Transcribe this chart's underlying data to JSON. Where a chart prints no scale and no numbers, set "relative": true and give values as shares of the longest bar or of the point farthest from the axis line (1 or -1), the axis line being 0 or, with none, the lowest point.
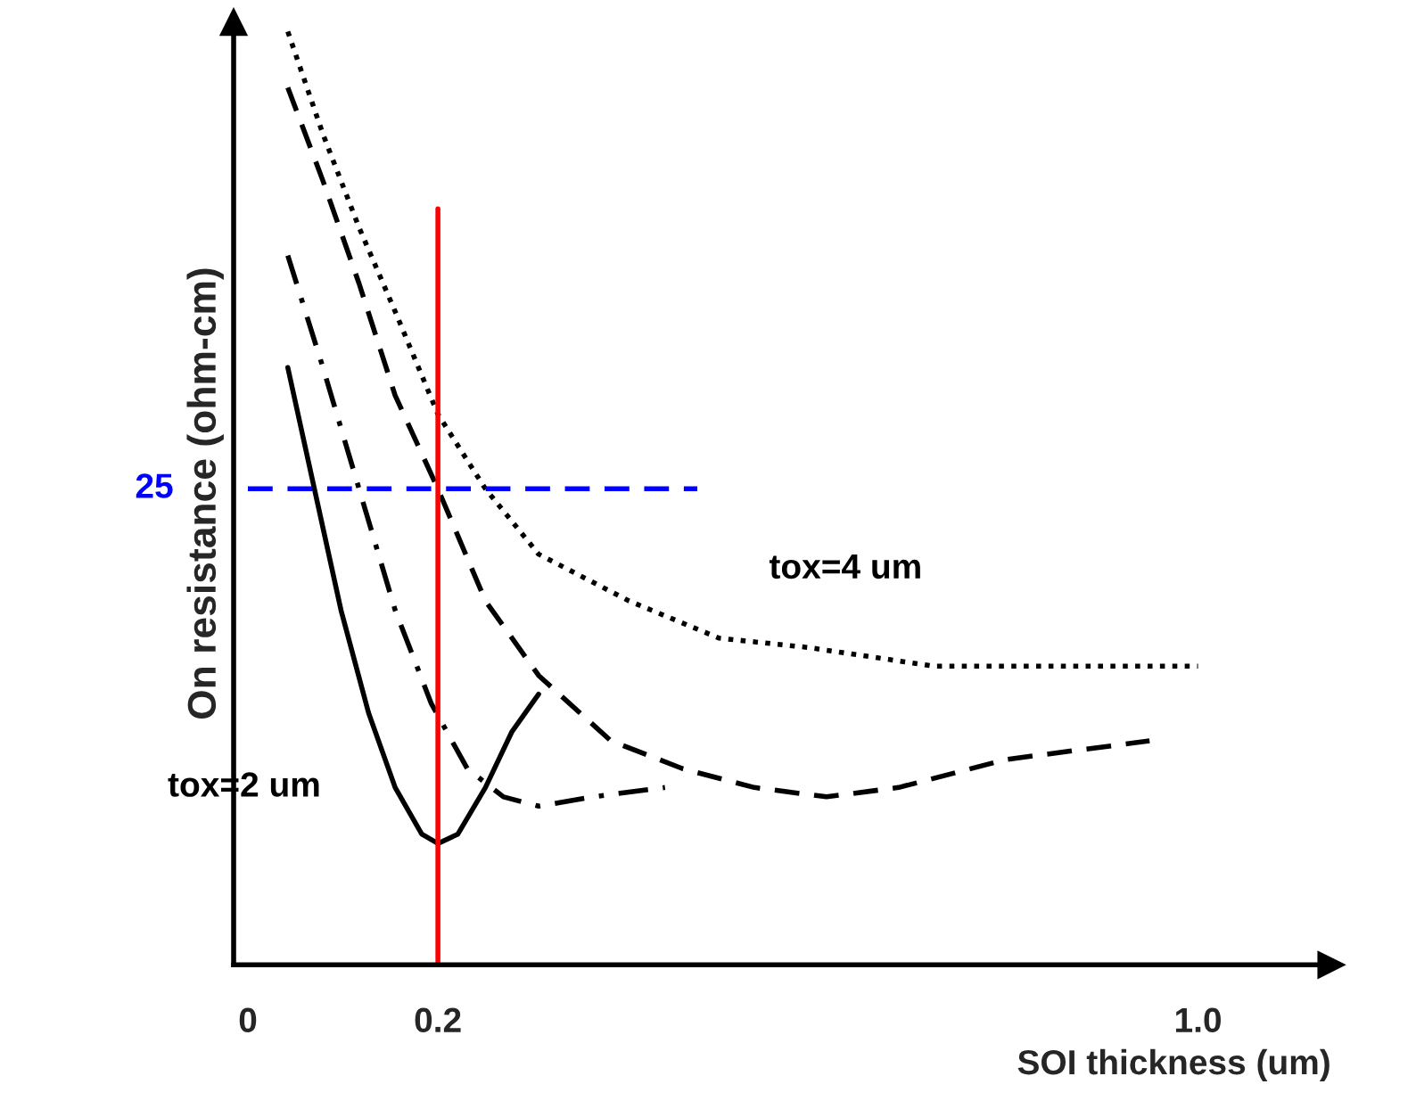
{
  "chart_data": {
    "type": "line",
    "xlabel": "SOI thickness (um)",
    "ylabel": "On resistance (ohm-cm)",
    "relative": true,
    "xlim": [
      -0.015,
      1.14
    ],
    "xticks": [
      {
        "value": 0,
        "label": "0"
      },
      {
        "value": 0.2,
        "label": "0.2"
      },
      {
        "value": 1.0,
        "label": "1.0"
      }
    ],
    "grid": false,
    "legend": false,
    "marker": "none",
    "series": [
      {
        "color": "#000000",
        "line_style": "solid",
        "x": [
          0.042,
          0.07,
          0.098,
          0.127,
          0.155,
          0.183,
          0.2,
          0.221,
          0.25,
          0.278,
          0.306
        ],
        "values": [
          0.64,
          0.51,
          0.38,
          0.27,
          0.19,
          0.14,
          0.13,
          0.14,
          0.19,
          0.25,
          0.29
        ]
      },
      {
        "color": "#000000",
        "line_style": "dashdot",
        "x": [
          0.042,
          0.079,
          0.117,
          0.155,
          0.193,
          0.231,
          0.269,
          0.306,
          0.363,
          0.439
        ],
        "values": [
          0.76,
          0.64,
          0.51,
          0.38,
          0.28,
          0.21,
          0.18,
          0.17,
          0.18,
          0.19
        ]
      },
      {
        "color": "#000000",
        "line_style": "dashed",
        "x": [
          0.042,
          0.079,
          0.117,
          0.155,
          0.2,
          0.25,
          0.306,
          0.382,
          0.458,
          0.533,
          0.609,
          0.685,
          0.798,
          0.949
        ],
        "values": [
          0.94,
          0.84,
          0.73,
          0.61,
          0.51,
          0.39,
          0.31,
          0.24,
          0.21,
          0.19,
          0.18,
          0.19,
          0.22,
          0.24
        ]
      },
      {
        "color": "#000000",
        "line_style": "dotted",
        "x": [
          0.042,
          0.079,
          0.117,
          0.155,
          0.2,
          0.25,
          0.306,
          0.401,
          0.496,
          0.59,
          0.722,
          0.874,
          1.0
        ],
        "values": [
          1.0,
          0.89,
          0.79,
          0.7,
          0.59,
          0.51,
          0.44,
          0.39,
          0.35,
          0.34,
          0.32,
          0.32,
          0.32
        ]
      },
      {
        "color": "#ff0000",
        "line_style": "solid",
        "x": [
          0.2,
          0.2
        ],
        "values": [
          0,
          0.81
        ]
      },
      {
        "color": "#0000ff",
        "line_style": "dashed",
        "x": [
          0,
          0.473
        ],
        "values": [
          0.51,
          0.51
        ]
      }
    ],
    "annotations": [
      {
        "text": "25",
        "x": 0,
        "y": 0.51
      },
      {
        "text": "tox=4 um",
        "x": 0.59,
        "y": 0.34
      },
      {
        "text": "tox=2 um",
        "x": 0.155,
        "y": 0.19
      }
    ]
  }
}
